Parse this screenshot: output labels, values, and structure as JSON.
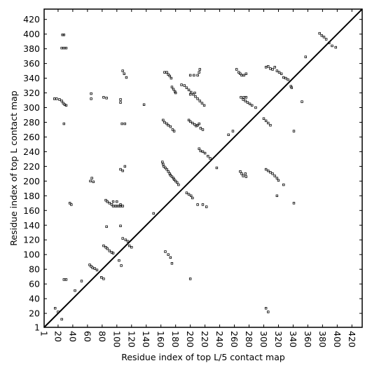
{
  "chart_data": {
    "type": "scatter",
    "xlabel": "Residue index of top L/5 contact map",
    "ylabel": "Residue index of top L contact map",
    "xlim": [
      1,
      434
    ],
    "ylim": [
      1,
      434
    ],
    "xticks": [
      1,
      20,
      40,
      60,
      80,
      100,
      120,
      140,
      160,
      180,
      200,
      220,
      240,
      260,
      280,
      300,
      320,
      340,
      360,
      380,
      400,
      420
    ],
    "yticks": [
      1,
      20,
      40,
      60,
      80,
      100,
      120,
      140,
      160,
      180,
      200,
      220,
      240,
      260,
      280,
      300,
      320,
      340,
      360,
      380,
      400,
      420
    ],
    "diagonal": true,
    "color": "#000000",
    "x": [
      26,
      28,
      25,
      28,
      31,
      15,
      18,
      22,
      25,
      27,
      29,
      31,
      28,
      36,
      38,
      28,
      31,
      43,
      16,
      20,
      52,
      63,
      65,
      67,
      70,
      73,
      79,
      82,
      82,
      85,
      87,
      90,
      93,
      95,
      85,
      87,
      90,
      93,
      95,
      98,
      100,
      103,
      105,
      95,
      100,
      105,
      108,
      86,
      64,
      66,
      68,
      65,
      65,
      82,
      86,
      105,
      105,
      107,
      111,
      105,
      108,
      111,
      108,
      110,
      113,
      137,
      108,
      112,
      115,
      117,
      120,
      103,
      106,
      105,
      165,
      168,
      170,
      172,
      174,
      175,
      177,
      179,
      180,
      163,
      165,
      168,
      170,
      173,
      176,
      178,
      162,
      163,
      164,
      166,
      168,
      170,
      172,
      173,
      175,
      177,
      178,
      180,
      182,
      184,
      188,
      192,
      195,
      198,
      201,
      204,
      207,
      210,
      213,
      216,
      219,
      206,
      200,
      200,
      205,
      210,
      212,
      213,
      198,
      200,
      203,
      206,
      208,
      210,
      212,
      214,
      217,
      212,
      214,
      217,
      220,
      224,
      227,
      195,
      198,
      201,
      203,
      210,
      217,
      222,
      236,
      200,
      263,
      266,
      268,
      270,
      273,
      276,
      269,
      272,
      275,
      278,
      281,
      284,
      289,
      273,
      276,
      268,
      270,
      272,
      275,
      276,
      303,
      306,
      309,
      312,
      315,
      318,
      321,
      324,
      327,
      330,
      333,
      337,
      338,
      352,
      357,
      376,
      379,
      382,
      385,
      389,
      393,
      398,
      166,
      170,
      173,
      175,
      150,
      25,
      303,
      306,
      300,
      303,
      306,
      309,
      303,
      306,
      309,
      312,
      315,
      318,
      320,
      327,
      318,
      341,
      341,
      252,
      258
    ],
    "y": [
      399,
      399,
      381,
      381,
      381,
      312,
      312,
      311,
      309,
      306,
      304,
      303,
      278,
      170,
      168,
      66,
      66,
      51,
      27,
      22,
      64,
      86,
      84,
      82,
      81,
      79,
      69,
      67,
      112,
      110,
      108,
      105,
      103,
      102,
      174,
      172,
      170,
      168,
      166,
      166,
      166,
      166,
      168,
      172,
      172,
      166,
      166,
      138,
      200,
      204,
      199,
      319,
      312,
      314,
      313,
      311,
      307,
      278,
      278,
      216,
      214,
      220,
      350,
      346,
      341,
      304,
      122,
      120,
      118,
      112,
      110,
      92,
      85,
      139,
      348,
      348,
      345,
      343,
      340,
      328,
      325,
      322,
      320,
      283,
      280,
      278,
      276,
      274,
      270,
      268,
      226,
      223,
      220,
      218,
      216,
      213,
      210,
      208,
      206,
      204,
      202,
      200,
      198,
      195,
      331,
      330,
      327,
      324,
      321,
      318,
      315,
      312,
      309,
      306,
      303,
      320,
      318,
      344,
      344,
      344,
      348,
      352,
      283,
      281,
      279,
      277,
      275,
      276,
      278,
      272,
      270,
      244,
      241,
      240,
      238,
      234,
      231,
      184,
      182,
      180,
      177,
      168,
      168,
      165,
      218,
      67,
      352,
      348,
      346,
      344,
      344,
      346,
      314,
      311,
      309,
      307,
      305,
      303,
      300,
      314,
      314,
      213,
      210,
      207,
      210,
      206,
      355,
      356,
      353,
      352,
      355,
      350,
      348,
      346,
      341,
      340,
      338,
      329,
      327,
      308,
      369,
      401,
      398,
      396,
      393,
      388,
      384,
      382,
      104,
      100,
      96,
      88,
      156,
      12,
      27,
      22,
      285,
      282,
      279,
      276,
      216,
      214,
      212,
      210,
      207,
      204,
      201,
      195,
      180,
      268,
      170,
      263,
      268
    ]
  }
}
